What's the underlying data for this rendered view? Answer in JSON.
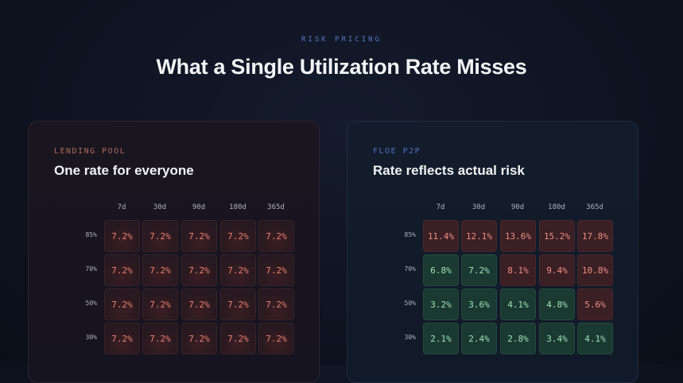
{
  "header": {
    "eyebrow": "RISK PRICING",
    "title": "What a Single Utilization Rate Misses"
  },
  "cards": [
    {
      "label": "LENDING POOL",
      "heading": "One rate for everyone",
      "columns": [
        "7d",
        "30d",
        "90d",
        "180d",
        "365d"
      ],
      "rows": [
        {
          "label": "85%",
          "cells": [
            {
              "v": "7.2%",
              "tone": "red"
            },
            {
              "v": "7.2%",
              "tone": "red"
            },
            {
              "v": "7.2%",
              "tone": "red"
            },
            {
              "v": "7.2%",
              "tone": "red"
            },
            {
              "v": "7.2%",
              "tone": "red"
            }
          ]
        },
        {
          "label": "70%",
          "cells": [
            {
              "v": "7.2%",
              "tone": "red"
            },
            {
              "v": "7.2%",
              "tone": "red"
            },
            {
              "v": "7.2%",
              "tone": "red"
            },
            {
              "v": "7.2%",
              "tone": "red"
            },
            {
              "v": "7.2%",
              "tone": "red"
            }
          ]
        },
        {
          "label": "50%",
          "cells": [
            {
              "v": "7.2%",
              "tone": "red"
            },
            {
              "v": "7.2%",
              "tone": "red"
            },
            {
              "v": "7.2%",
              "tone": "red"
            },
            {
              "v": "7.2%",
              "tone": "red"
            },
            {
              "v": "7.2%",
              "tone": "red"
            }
          ]
        },
        {
          "label": "30%",
          "cells": [
            {
              "v": "7.2%",
              "tone": "red"
            },
            {
              "v": "7.2%",
              "tone": "red"
            },
            {
              "v": "7.2%",
              "tone": "red"
            },
            {
              "v": "7.2%",
              "tone": "red"
            },
            {
              "v": "7.2%",
              "tone": "red"
            }
          ]
        }
      ]
    },
    {
      "label": "FLOE P2P",
      "heading": "Rate reflects actual risk",
      "columns": [
        "7d",
        "30d",
        "90d",
        "180d",
        "365d"
      ],
      "rows": [
        {
          "label": "85%",
          "cells": [
            {
              "v": "11.4%",
              "tone": "dred"
            },
            {
              "v": "12.1%",
              "tone": "dred"
            },
            {
              "v": "13.6%",
              "tone": "dred"
            },
            {
              "v": "15.2%",
              "tone": "dred"
            },
            {
              "v": "17.8%",
              "tone": "dred"
            }
          ]
        },
        {
          "label": "70%",
          "cells": [
            {
              "v": "6.8%",
              "tone": "green"
            },
            {
              "v": "7.2%",
              "tone": "green"
            },
            {
              "v": "8.1%",
              "tone": "dred"
            },
            {
              "v": "9.4%",
              "tone": "dred"
            },
            {
              "v": "10.8%",
              "tone": "dred"
            }
          ]
        },
        {
          "label": "50%",
          "cells": [
            {
              "v": "3.2%",
              "tone": "green"
            },
            {
              "v": "3.6%",
              "tone": "green"
            },
            {
              "v": "4.1%",
              "tone": "green"
            },
            {
              "v": "4.8%",
              "tone": "green"
            },
            {
              "v": "5.6%",
              "tone": "dred"
            }
          ]
        },
        {
          "label": "30%",
          "cells": [
            {
              "v": "2.1%",
              "tone": "green"
            },
            {
              "v": "2.4%",
              "tone": "green"
            },
            {
              "v": "2.8%",
              "tone": "green"
            },
            {
              "v": "3.4%",
              "tone": "green"
            },
            {
              "v": "4.1%",
              "tone": "green"
            }
          ]
        }
      ]
    }
  ]
}
